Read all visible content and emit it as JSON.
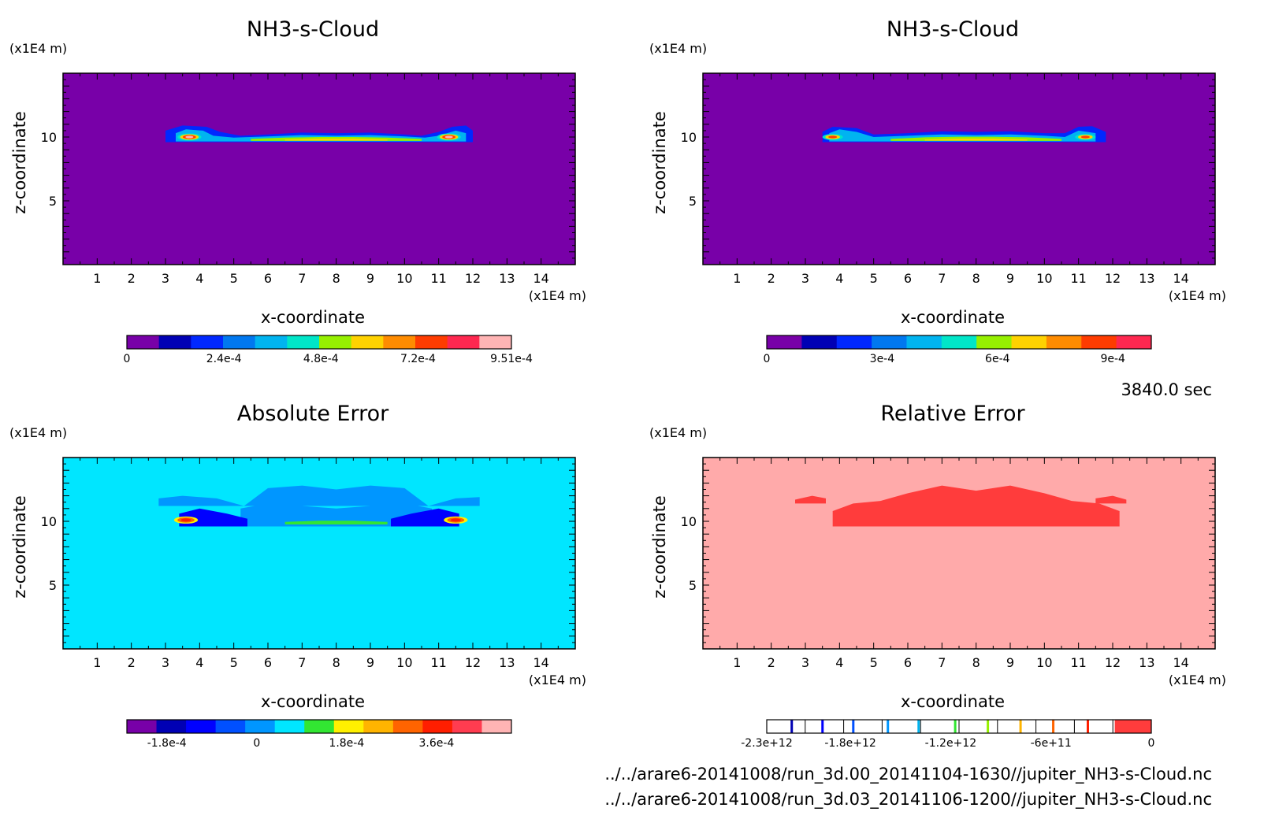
{
  "chart_data": [
    {
      "type": "heatmap",
      "title": "NH3-s-Cloud",
      "xlabel": "x-coordinate",
      "ylabel": "z-coordinate",
      "x_unit": "(x1E4 m)",
      "y_unit": "(x1E4 m)",
      "xlim": [
        0,
        15
      ],
      "ylim": [
        0,
        15
      ],
      "xticks": [
        "1",
        "2",
        "3",
        "4",
        "5",
        "6",
        "7",
        "8",
        "9",
        "10",
        "11",
        "12",
        "13",
        "14"
      ],
      "yticks": [
        "5",
        "10"
      ],
      "background": "#7800a8",
      "colorbar": {
        "colors": [
          "#7800a8",
          "#0000b4",
          "#0028ff",
          "#0078f0",
          "#00b4f0",
          "#00e6c8",
          "#96f000",
          "#ffd200",
          "#ff8c00",
          "#ff3c00",
          "#ff2850",
          "#ffb4b4"
        ],
        "labels": [
          "0",
          "2.4e-4",
          "4.8e-4",
          "7.2e-4",
          "9.51e-4"
        ],
        "label_values": [
          0,
          0.00024,
          0.00048,
          0.00072,
          0.000951
        ],
        "range": [
          0,
          0.000951
        ]
      },
      "features": [
        {
          "x": [
            3.0,
            3.5,
            4.2,
            4.6,
            5.2,
            6,
            7,
            8,
            9,
            10,
            10.5,
            11,
            11.4,
            11.8,
            12.0
          ],
          "z_top": [
            10.5,
            10.9,
            10.8,
            10.4,
            10.1,
            10.2,
            10.35,
            10.3,
            10.35,
            10.2,
            10.1,
            10.4,
            10.8,
            10.9,
            10.5
          ],
          "z_bottom": 9.6,
          "color": "#0028ff"
        },
        {
          "x": [
            3.3,
            3.6,
            4.1,
            4.4,
            5,
            6,
            7,
            8,
            9,
            10,
            10.6,
            11,
            11.5,
            11.8
          ],
          "z_top": [
            10.3,
            10.6,
            10.5,
            10.1,
            9.95,
            10.05,
            10.15,
            10.1,
            10.15,
            10.05,
            9.95,
            10.1,
            10.5,
            10.3
          ],
          "z_bottom": 9.65,
          "color": "#00b4f0"
        },
        {
          "x": [
            5.5,
            6.5,
            7.5,
            8.5,
            9.5,
            10.5
          ],
          "z_top": [
            9.85,
            9.95,
            10.0,
            10.0,
            9.95,
            9.85
          ],
          "z_bottom": 9.7,
          "color": "#96f000"
        },
        {
          "x": [
            6.5,
            7.5,
            8.5,
            9.5
          ],
          "z_top": [
            9.8,
            9.87,
            9.87,
            9.8
          ],
          "z_bottom": 9.72,
          "color": "#ffd200"
        }
      ],
      "hotspots": [
        {
          "x": 3.7,
          "z": 10.0,
          "r": 0.35,
          "colors": [
            "#00e6c8",
            "#ffd200",
            "#ff3c00",
            "#ffb4b4"
          ]
        },
        {
          "x": 11.3,
          "z": 10.0,
          "r": 0.35,
          "colors": [
            "#00e6c8",
            "#ffd200",
            "#ff3c00",
            "#ffb4b4"
          ]
        }
      ]
    },
    {
      "type": "heatmap",
      "title": "NH3-s-Cloud",
      "xlabel": "x-coordinate",
      "ylabel": "z-coordinate",
      "x_unit": "(x1E4 m)",
      "y_unit": "(x1E4 m)",
      "xlim": [
        0,
        15
      ],
      "ylim": [
        0,
        15
      ],
      "xticks": [
        "1",
        "2",
        "3",
        "4",
        "5",
        "6",
        "7",
        "8",
        "9",
        "10",
        "11",
        "12",
        "13",
        "14"
      ],
      "yticks": [
        "5",
        "10"
      ],
      "background": "#7800a8",
      "colorbar": {
        "colors": [
          "#7800a8",
          "#0000b4",
          "#0028ff",
          "#0078f0",
          "#00b4f0",
          "#00e6c8",
          "#96f000",
          "#ffd200",
          "#ff8c00",
          "#ff3c00",
          "#ff2850"
        ],
        "labels": [
          "0",
          "3e-4",
          "6e-4",
          "9e-4"
        ],
        "label_values": [
          0,
          0.0003,
          0.0006,
          0.0009
        ],
        "range": [
          0,
          0.001
        ]
      },
      "features": [
        {
          "x": [
            3.5,
            3.8,
            4.5,
            5.0,
            6,
            7,
            8,
            9,
            10,
            10.6,
            11,
            11.4,
            11.8
          ],
          "z_top": [
            10.4,
            10.8,
            10.7,
            10.2,
            10.3,
            10.45,
            10.4,
            10.45,
            10.3,
            10.3,
            10.8,
            10.85,
            10.4
          ],
          "z_bottom": 9.6,
          "color": "#0028ff"
        },
        {
          "x": [
            3.7,
            4.0,
            4.5,
            5,
            6,
            7,
            8,
            9,
            10,
            10.6,
            11,
            11.5
          ],
          "z_top": [
            10.3,
            10.6,
            10.4,
            10.0,
            10.1,
            10.2,
            10.15,
            10.2,
            10.1,
            10.0,
            10.5,
            10.3
          ],
          "z_bottom": 9.65,
          "color": "#00b4f0"
        },
        {
          "x": [
            5.5,
            6.5,
            7.5,
            8.5,
            9.5,
            10.5
          ],
          "z_top": [
            9.85,
            9.98,
            10.02,
            10.02,
            9.98,
            9.85
          ],
          "z_bottom": 9.7,
          "color": "#96f000"
        },
        {
          "x": [
            6.5,
            7.5,
            8.5,
            9.5
          ],
          "z_top": [
            9.8,
            9.88,
            9.88,
            9.8
          ],
          "z_bottom": 9.72,
          "color": "#ffd200"
        }
      ],
      "hotspots": [
        {
          "x": 3.8,
          "z": 10.0,
          "r": 0.3,
          "colors": [
            "#00e6c8",
            "#ffd200",
            "#ff3c00"
          ]
        },
        {
          "x": 11.2,
          "z": 10.0,
          "r": 0.3,
          "colors": [
            "#00e6c8",
            "#ffd200",
            "#ff3c00"
          ]
        }
      ]
    },
    {
      "type": "heatmap",
      "title": "Absolute Error",
      "xlabel": "x-coordinate",
      "ylabel": "z-coordinate",
      "x_unit": "(x1E4 m)",
      "y_unit": "(x1E4 m)",
      "xlim": [
        0,
        15
      ],
      "ylim": [
        0,
        15
      ],
      "xticks": [
        "1",
        "2",
        "3",
        "4",
        "5",
        "6",
        "7",
        "8",
        "9",
        "10",
        "11",
        "12",
        "13",
        "14"
      ],
      "yticks": [
        "5",
        "10"
      ],
      "background": "#00e6ff",
      "colorbar": {
        "colors": [
          "#7800a8",
          "#0000b4",
          "#0000ff",
          "#0050ff",
          "#0096ff",
          "#00e6ff",
          "#32e632",
          "#fff000",
          "#ffb400",
          "#ff6400",
          "#ff1e00",
          "#ff3c50",
          "#ffb4b4"
        ],
        "labels": [
          "-1.8e-4",
          "0",
          "1.8e-4",
          "3.6e-4"
        ],
        "label_values": [
          -0.00018,
          0,
          0.00018,
          0.00036
        ],
        "range": [
          -0.00026,
          0.00051
        ]
      },
      "features": [
        {
          "x": [
            2.8,
            3.5,
            4.5,
            5.3,
            6,
            7,
            8,
            9,
            10,
            10.7,
            11.5,
            12.2
          ],
          "z_top": [
            11.8,
            12.0,
            11.8,
            11.2,
            12.6,
            12.8,
            12.5,
            12.8,
            12.6,
            11.2,
            11.8,
            11.9
          ],
          "z_bottom": 11.2,
          "color": "#0096ff"
        },
        {
          "x": [
            5.2,
            6,
            7,
            8,
            9,
            10,
            10.8
          ],
          "z_top": [
            11.0,
            11.4,
            11.2,
            11.0,
            11.2,
            11.4,
            11.0
          ],
          "z_bottom": 9.6,
          "color": "#0096ff"
        },
        {
          "x": [
            3.4,
            4.0,
            4.8,
            5.4
          ],
          "z_top": [
            10.6,
            11.0,
            10.6,
            10.2
          ],
          "z_bottom": 9.6,
          "color": "#0000ff"
        },
        {
          "x": [
            9.6,
            10.2,
            11.0,
            11.6
          ],
          "z_top": [
            10.2,
            10.6,
            11.0,
            10.6
          ],
          "z_bottom": 9.6,
          "color": "#0000ff"
        },
        {
          "x": [
            6.5,
            7.5,
            8.5,
            9.5
          ],
          "z_top": [
            9.95,
            10.05,
            10.05,
            9.95
          ],
          "z_bottom": 9.75,
          "color": "#32e632"
        }
      ],
      "hotspots": [
        {
          "x": 3.6,
          "z": 10.1,
          "r": 0.35,
          "colors": [
            "#fff000",
            "#ff6400",
            "#ff1e00"
          ]
        },
        {
          "x": 11.5,
          "z": 10.1,
          "r": 0.35,
          "colors": [
            "#fff000",
            "#ff6400",
            "#ff1e00"
          ]
        }
      ]
    },
    {
      "type": "heatmap",
      "title": "Relative Error",
      "xlabel": "x-coordinate",
      "ylabel": "z-coordinate",
      "x_unit": "(x1E4 m)",
      "y_unit": "(x1E4 m)",
      "xlim": [
        0,
        15
      ],
      "ylim": [
        0,
        15
      ],
      "xticks": [
        "1",
        "2",
        "3",
        "4",
        "5",
        "6",
        "7",
        "8",
        "9",
        "10",
        "11",
        "12",
        "13",
        "14"
      ],
      "yticks": [
        "5",
        "10"
      ],
      "background": "#ffaaaa",
      "colorbar": {
        "colors": [
          "#0000b4",
          "#0000ff",
          "#0050ff",
          "#0096ff",
          "#00b4f0",
          "#32e632",
          "#96f000",
          "#ffb400",
          "#ff6400",
          "#ff1e00"
        ],
        "marker_positions": [
          0.065,
          0.145,
          0.225,
          0.315,
          0.395,
          0.49,
          0.575,
          0.66,
          0.745,
          0.835
        ],
        "labels": [
          "-2.3e+12",
          "-1.8e+12",
          "-1.2e+12",
          "-6e+11",
          "0"
        ],
        "label_values": [
          -2300000000000.0,
          -1800000000000.0,
          -1200000000000.0,
          -600000000000.0,
          0
        ],
        "range": [
          -2300000000000.0,
          0
        ]
      },
      "features": [
        {
          "x": [
            2.7,
            3.2,
            3.6
          ],
          "z_top": [
            11.7,
            12.0,
            11.8
          ],
          "z_bottom": 11.4,
          "color": "#ff3c3c"
        },
        {
          "x": [
            11.5,
            12.0,
            12.4
          ],
          "z_top": [
            11.8,
            12.0,
            11.7
          ],
          "z_bottom": 11.4,
          "color": "#ff3c3c"
        },
        {
          "x": [
            3.8,
            4.4,
            5.2,
            6.0,
            7,
            8,
            9,
            10,
            10.8,
            11.6,
            12.2
          ],
          "z_top": [
            10.8,
            11.4,
            11.6,
            12.2,
            12.8,
            12.4,
            12.8,
            12.2,
            11.6,
            11.4,
            10.8
          ],
          "z_bottom": 9.6,
          "color": "#ff3c3c"
        }
      ],
      "hotspots": []
    }
  ],
  "time_label": "3840.0 sec",
  "file_paths": [
    "../../arare6-20141008/run_3d.00_20141104-1630//jupiter_NH3-s-Cloud.nc",
    "../../arare6-20141008/run_3d.03_20141106-1200//jupiter_NH3-s-Cloud.nc"
  ]
}
